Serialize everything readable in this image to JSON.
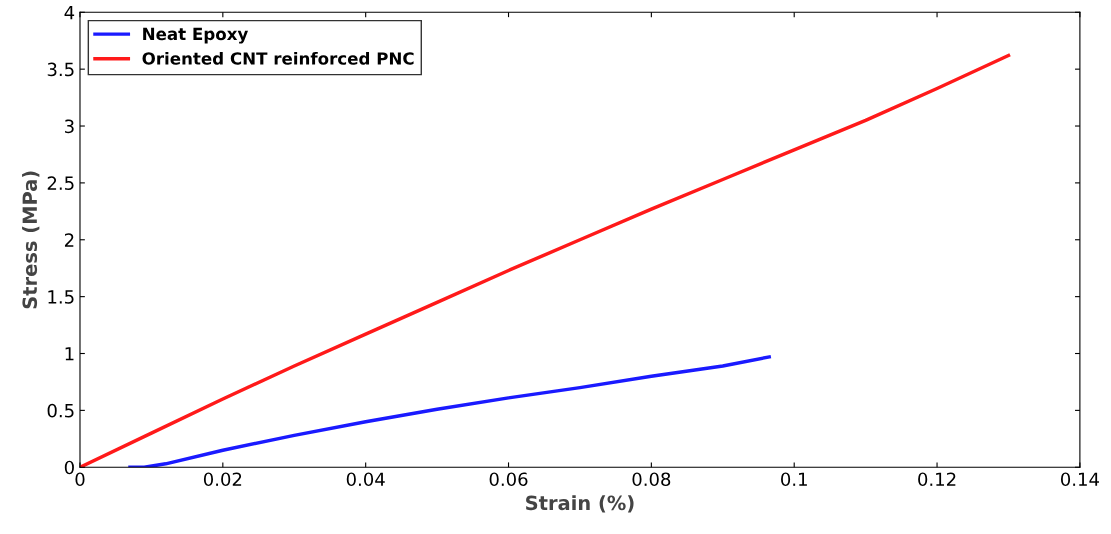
{
  "chart_data": {
    "type": "line",
    "xlabel": "Strain (%)",
    "ylabel": "Stress (MPa)",
    "xlim": [
      0,
      0.14
    ],
    "xticks": [
      0,
      0.02,
      0.04,
      0.06,
      0.08,
      0.1,
      0.12,
      0.14
    ],
    "ylim": [
      0,
      4
    ],
    "yticks": [
      0,
      0.5,
      1,
      1.5,
      2,
      2.5,
      3,
      3.5,
      4
    ],
    "grid": false,
    "legend": "top left",
    "marker": "none",
    "line_style": "solid",
    "series": [
      {
        "name": "Neat Epoxy",
        "color": "#1a1aff",
        "x": [
          0.007,
          0.009,
          0.012,
          0.02,
          0.03,
          0.04,
          0.05,
          0.06,
          0.07,
          0.08,
          0.09,
          0.0965
        ],
        "values": [
          0,
          0,
          0.03,
          0.15,
          0.28,
          0.4,
          0.51,
          0.61,
          0.7,
          0.8,
          0.89,
          0.97
        ]
      },
      {
        "name": "Oriented CNT reinforced PNC",
        "color": "#ff1a1a",
        "x": [
          0,
          0.01,
          0.02,
          0.03,
          0.04,
          0.05,
          0.06,
          0.07,
          0.08,
          0.09,
          0.1,
          0.11,
          0.12,
          0.13
        ],
        "values": [
          0,
          0.3,
          0.6,
          0.89,
          1.17,
          1.45,
          1.73,
          2.0,
          2.27,
          2.53,
          2.79,
          3.05,
          3.33,
          3.62
        ]
      }
    ]
  }
}
